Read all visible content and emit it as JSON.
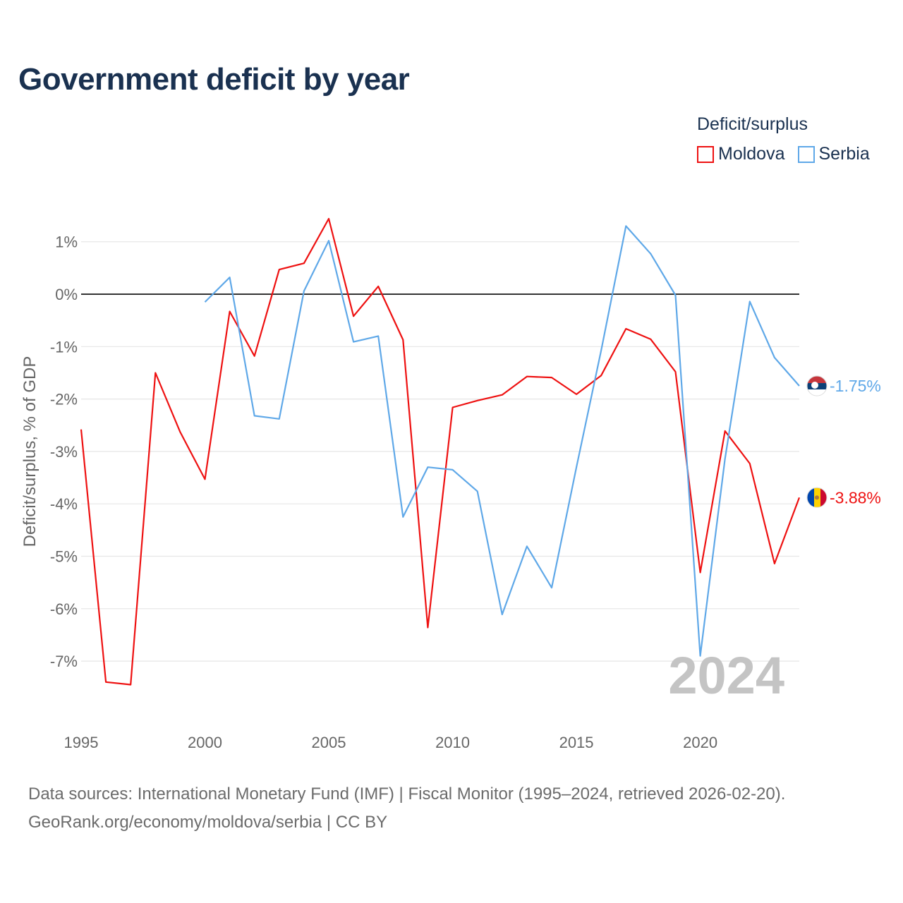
{
  "title": "Government deficit by year",
  "legend": {
    "title": "Deficit/surplus",
    "items": [
      {
        "label": "Moldova",
        "color": "#ee1111"
      },
      {
        "label": "Serbia",
        "color": "#5fa8e8"
      }
    ]
  },
  "source": {
    "line1": "Data sources: International Monetary Fund (IMF) | Fiscal Monitor (1995–2024, retrieved 2026-02-20).",
    "line2": "GeoRank.org/economy/moldova/serbia | CC BY"
  },
  "chart_data": {
    "type": "line",
    "title": "Government deficit by year",
    "ylabel": "Deficit/surplus, % of GDP",
    "xlabel": "",
    "xlim": [
      1995,
      2024
    ],
    "ylim": [
      -8.2,
      1.9
    ],
    "x_ticks": [
      1995,
      2000,
      2005,
      2010,
      2015,
      2020
    ],
    "y_ticks": [
      1,
      0,
      -1,
      -2,
      -3,
      -4,
      -5,
      -6,
      -7
    ],
    "y_tick_labels": [
      "1%",
      "0%",
      "-1%",
      "-2%",
      "-3%",
      "-4%",
      "-5%",
      "-6%",
      "-7%"
    ],
    "watermark_year": "2024",
    "series": [
      {
        "name": "Moldova",
        "color": "#ee1111",
        "end_label": "-3.88%",
        "flag": "moldova-flag",
        "x": [
          1995,
          1996,
          1997,
          1998,
          1999,
          2000,
          2001,
          2002,
          2003,
          2004,
          2005,
          2006,
          2007,
          2008,
          2009,
          2010,
          2011,
          2012,
          2013,
          2014,
          2015,
          2016,
          2017,
          2018,
          2019,
          2020,
          2021,
          2022,
          2023,
          2024
        ],
        "y": [
          -2.58,
          -7.4,
          -7.45,
          -1.5,
          -2.63,
          -3.53,
          -0.33,
          -1.18,
          0.47,
          0.59,
          1.44,
          -0.42,
          0.15,
          -0.87,
          -6.36,
          -2.16,
          -2.03,
          -1.92,
          -1.57,
          -1.59,
          -1.91,
          -1.55,
          -0.66,
          -0.86,
          -1.48,
          -5.31,
          -2.61,
          -3.23,
          -5.14,
          -3.88
        ]
      },
      {
        "name": "Serbia",
        "color": "#5fa8e8",
        "end_label": "-1.75%",
        "flag": "serbia-flag",
        "x": [
          2000,
          2001,
          2002,
          2003,
          2004,
          2005,
          2006,
          2007,
          2008,
          2009,
          2010,
          2011,
          2012,
          2013,
          2014,
          2015,
          2016,
          2017,
          2018,
          2019,
          2020,
          2021,
          2022,
          2023,
          2024
        ],
        "y": [
          -0.15,
          0.32,
          -2.32,
          -2.38,
          0.06,
          1.02,
          -0.91,
          -0.8,
          -4.25,
          -3.3,
          -3.35,
          -3.76,
          -6.11,
          -4.81,
          -5.6,
          -3.3,
          -1.07,
          1.3,
          0.77,
          -0.02,
          -6.9,
          -3.14,
          -0.14,
          -1.21,
          -1.75
        ]
      }
    ]
  }
}
